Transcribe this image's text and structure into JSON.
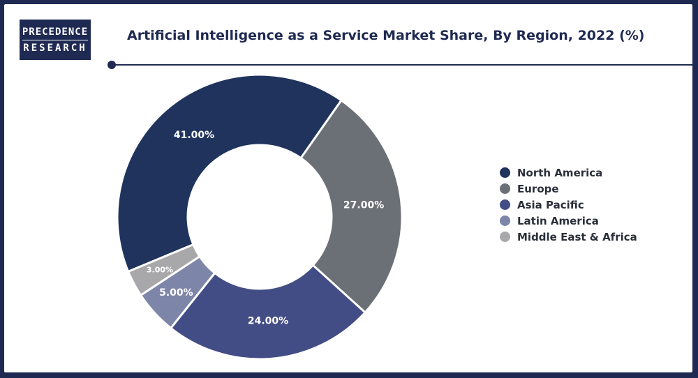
{
  "logo": {
    "line1": "PRECEDENCE",
    "line2": "RESEARCH"
  },
  "chart_data": {
    "type": "pie",
    "variant": "donut",
    "title": "Artificial Intelligence as a Service Market Share, By Region, 2022 (%)",
    "categories": [
      "North America",
      "Europe",
      "Asia Pacific",
      "Latin America",
      "Middle East & Africa"
    ],
    "values": [
      41.0,
      27.0,
      24.0,
      5.0,
      3.0
    ],
    "data_labels": [
      "41.00%",
      "27.00%",
      "24.00%",
      "5.00%",
      "3.00%"
    ],
    "colors": [
      "#1f335c",
      "#6b6f76",
      "#434d85",
      "#7d86a8",
      "#a8a8aa"
    ],
    "legend_position": "right"
  }
}
